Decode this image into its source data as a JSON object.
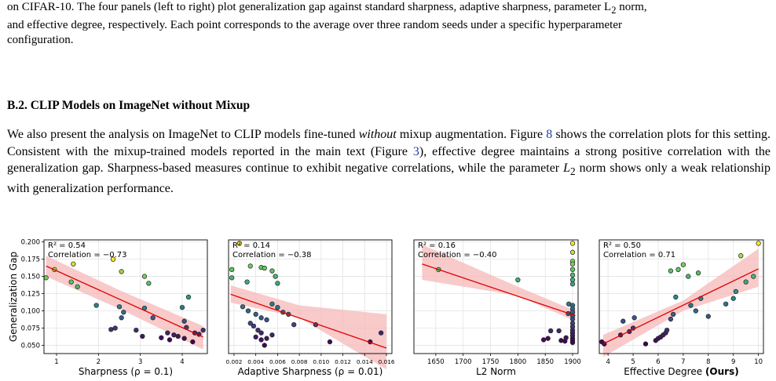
{
  "caption": {
    "line1": "on CIFAR-10. The four panels (left to right) plot generalization gap against standard sharpness, adaptive sharpness, parameter L",
    "line1_sub": "2",
    "line1_tail": " norm,",
    "line2": "and effective degree, respectively. Each point corresponds to the average over three random seeds under a specific hyperparameter",
    "line3": "configuration."
  },
  "section": {
    "heading": "B.2. CLIP Models on ImageNet without Mixup"
  },
  "paragraph": {
    "s1": "We also present the analysis on ImageNet to CLIP models fine-tuned ",
    "s1_em": "without",
    "s1_tail": " mixup augmentation. Figure ",
    "fig8": "8",
    "s2": " shows the correlation plots for this setting. Consistent with the mixup-trained models reported in the main text (Figure ",
    "fig3": "3",
    "s3": "), effective degree maintains a strong positive correlation with the generalization gap. Sharpness-based measures continue to exhibit negative correlations, while the parameter ",
    "l2": "L",
    "l2_sub": "2",
    "s4": " norm shows only a weak relationship with generalization performance."
  },
  "shared_ylabel": "Generalization Gap",
  "colors": {
    "regression_line": "#e00000",
    "confidence_band": "#f7b8b8",
    "colormap": "viridis"
  },
  "chart_data": [
    {
      "type": "scatter",
      "xlabel": "Sharpness (ρ = 0.1)",
      "xticks": [
        1,
        2,
        3,
        4
      ],
      "xlim": [
        0.7,
        4.6
      ],
      "yticks": [
        "0.050",
        "0.075",
        "0.100",
        "0.125",
        "0.150",
        "0.175",
        "0.200"
      ],
      "ylim": [
        0.038,
        0.203
      ],
      "r2": "R² = 0.54",
      "corr": "Correlation = −0.73",
      "fit": [
        [
          0.75,
          0.165
        ],
        [
          4.5,
          0.062
        ]
      ],
      "band_upper": [
        [
          0.75,
          0.18
        ],
        [
          2.5,
          0.13
        ],
        [
          4.5,
          0.078
        ]
      ],
      "band_lower": [
        [
          0.75,
          0.15
        ],
        [
          2.5,
          0.103
        ],
        [
          4.5,
          0.044
        ]
      ],
      "points": [
        [
          0.75,
          0.148
        ],
        [
          0.95,
          0.16
        ],
        [
          1.4,
          0.168
        ],
        [
          1.35,
          0.142
        ],
        [
          1.5,
          0.135
        ],
        [
          2.35,
          0.175
        ],
        [
          2.55,
          0.157
        ],
        [
          3.1,
          0.15
        ],
        [
          3.2,
          0.14
        ],
        [
          1.95,
          0.108
        ],
        [
          2.4,
          0.075
        ],
        [
          2.55,
          0.09
        ],
        [
          2.6,
          0.098
        ],
        [
          2.5,
          0.106
        ],
        [
          2.3,
          0.073
        ],
        [
          2.9,
          0.072
        ],
        [
          3.1,
          0.104
        ],
        [
          3.05,
          0.063
        ],
        [
          3.3,
          0.09
        ],
        [
          3.5,
          0.061
        ],
        [
          3.65,
          0.068
        ],
        [
          3.7,
          0.058
        ],
        [
          3.8,
          0.065
        ],
        [
          3.9,
          0.063
        ],
        [
          4.0,
          0.105
        ],
        [
          4.05,
          0.085
        ],
        [
          4.1,
          0.076
        ],
        [
          4.05,
          0.06
        ],
        [
          4.15,
          0.12
        ],
        [
          4.3,
          0.068
        ],
        [
          4.4,
          0.066
        ],
        [
          4.5,
          0.072
        ],
        [
          4.25,
          0.055
        ]
      ]
    },
    {
      "type": "scatter",
      "xlabel": "Adaptive Sharpness (ρ = 0.01)",
      "xticks": [
        "0.002",
        "0.004",
        "0.006",
        "0.008",
        "0.010",
        "0.012",
        "0.014",
        "0.016"
      ],
      "xlim": [
        0.0015,
        0.0165
      ],
      "yticks": [],
      "ylim": [
        0.038,
        0.203
      ],
      "r2": "R² = 0.14",
      "corr": "Correlation = −0.38",
      "fit": [
        [
          0.0017,
          0.124
        ],
        [
          0.016,
          0.046
        ]
      ],
      "band_upper": [
        [
          0.0017,
          0.137
        ],
        [
          0.008,
          0.108
        ],
        [
          0.016,
          0.095
        ]
      ],
      "band_lower": [
        [
          0.0017,
          0.112
        ],
        [
          0.008,
          0.09
        ],
        [
          0.016,
          0.015
        ]
      ],
      "points": [
        [
          0.0018,
          0.16
        ],
        [
          0.0018,
          0.148
        ],
        [
          0.0025,
          0.198
        ],
        [
          0.0032,
          0.142
        ],
        [
          0.0035,
          0.165
        ],
        [
          0.0045,
          0.163
        ],
        [
          0.0048,
          0.162
        ],
        [
          0.0055,
          0.158
        ],
        [
          0.0058,
          0.15
        ],
        [
          0.006,
          0.14
        ],
        [
          0.0028,
          0.106
        ],
        [
          0.0033,
          0.1
        ],
        [
          0.004,
          0.095
        ],
        [
          0.0045,
          0.09
        ],
        [
          0.005,
          0.087
        ],
        [
          0.0055,
          0.11
        ],
        [
          0.006,
          0.105
        ],
        [
          0.0065,
          0.098
        ],
        [
          0.007,
          0.095
        ],
        [
          0.0035,
          0.082
        ],
        [
          0.0038,
          0.078
        ],
        [
          0.0042,
          0.072
        ],
        [
          0.0045,
          0.068
        ],
        [
          0.004,
          0.062
        ],
        [
          0.0045,
          0.058
        ],
        [
          0.005,
          0.06
        ],
        [
          0.0055,
          0.065
        ],
        [
          0.0075,
          0.08
        ],
        [
          0.0095,
          0.08
        ],
        [
          0.0108,
          0.055
        ],
        [
          0.0145,
          0.055
        ],
        [
          0.0155,
          0.068
        ],
        [
          0.0048,
          0.05
        ]
      ]
    },
    {
      "type": "scatter",
      "xlabel": "L2 Norm",
      "xticks": [
        1650,
        1700,
        1750,
        1800,
        1850,
        1900
      ],
      "xlim": [
        1610,
        1910
      ],
      "yticks": [],
      "ylim": [
        0.038,
        0.203
      ],
      "r2": "R² = 0.16",
      "corr": "Correlation = −0.40",
      "fit": [
        [
          1625,
          0.168
        ],
        [
          1905,
          0.093
        ]
      ],
      "band_upper": [
        [
          1625,
          0.196
        ],
        [
          1800,
          0.135
        ],
        [
          1905,
          0.1
        ]
      ],
      "band_lower": [
        [
          1625,
          0.145
        ],
        [
          1800,
          0.122
        ],
        [
          1905,
          0.085
        ]
      ],
      "points": [
        [
          1655,
          0.16
        ],
        [
          1800,
          0.145
        ],
        [
          1900,
          0.198
        ],
        [
          1900,
          0.185
        ],
        [
          1900,
          0.172
        ],
        [
          1900,
          0.168
        ],
        [
          1900,
          0.16
        ],
        [
          1900,
          0.152
        ],
        [
          1900,
          0.145
        ],
        [
          1900,
          0.139
        ],
        [
          1900,
          0.108
        ],
        [
          1900,
          0.103
        ],
        [
          1900,
          0.098
        ],
        [
          1900,
          0.093
        ],
        [
          1900,
          0.088
        ],
        [
          1900,
          0.082
        ],
        [
          1900,
          0.077
        ],
        [
          1900,
          0.072
        ],
        [
          1900,
          0.068
        ],
        [
          1900,
          0.064
        ],
        [
          1900,
          0.06
        ],
        [
          1900,
          0.057
        ],
        [
          1900,
          0.054
        ],
        [
          1893,
          0.11
        ],
        [
          1892,
          0.096
        ],
        [
          1888,
          0.061
        ],
        [
          1886,
          0.056
        ],
        [
          1879,
          0.057
        ],
        [
          1875,
          0.071
        ],
        [
          1860,
          0.071
        ],
        [
          1855,
          0.06
        ],
        [
          1847,
          0.058
        ]
      ]
    },
    {
      "type": "scatter",
      "xlabel": "Effective Degree ",
      "xlabel_bold": "(Ours)",
      "xticks": [
        4,
        5,
        6,
        7,
        8,
        9,
        10
      ],
      "xlim": [
        3.65,
        10.2
      ],
      "yticks": [],
      "ylim": [
        0.038,
        0.203
      ],
      "r2": "R² = 0.50",
      "corr": "Correlation = 0.71",
      "fit": [
        [
          3.8,
          0.052
        ],
        [
          10.0,
          0.161
        ]
      ],
      "band_upper": [
        [
          3.8,
          0.065
        ],
        [
          7.0,
          0.115
        ],
        [
          10.0,
          0.19
        ]
      ],
      "band_lower": [
        [
          3.8,
          0.033
        ],
        [
          7.0,
          0.1
        ],
        [
          10.0,
          0.135
        ]
      ],
      "points": [
        [
          3.75,
          0.055
        ],
        [
          3.85,
          0.052
        ],
        [
          4.5,
          0.065
        ],
        [
          4.6,
          0.085
        ],
        [
          4.85,
          0.07
        ],
        [
          5.05,
          0.09
        ],
        [
          5.0,
          0.075
        ],
        [
          5.5,
          0.052
        ],
        [
          5.9,
          0.057
        ],
        [
          6.0,
          0.06
        ],
        [
          6.1,
          0.062
        ],
        [
          6.2,
          0.065
        ],
        [
          6.3,
          0.068
        ],
        [
          6.35,
          0.072
        ],
        [
          6.5,
          0.088
        ],
        [
          6.6,
          0.095
        ],
        [
          6.7,
          0.12
        ],
        [
          6.5,
          0.158
        ],
        [
          6.8,
          0.16
        ],
        [
          7.0,
          0.167
        ],
        [
          7.2,
          0.15
        ],
        [
          7.3,
          0.108
        ],
        [
          7.5,
          0.1
        ],
        [
          7.7,
          0.118
        ],
        [
          7.6,
          0.155
        ],
        [
          8.0,
          0.092
        ],
        [
          8.7,
          0.11
        ],
        [
          9.0,
          0.118
        ],
        [
          9.1,
          0.128
        ],
        [
          9.3,
          0.18
        ],
        [
          9.8,
          0.15
        ],
        [
          10.0,
          0.198
        ],
        [
          9.5,
          0.142
        ]
      ]
    }
  ]
}
